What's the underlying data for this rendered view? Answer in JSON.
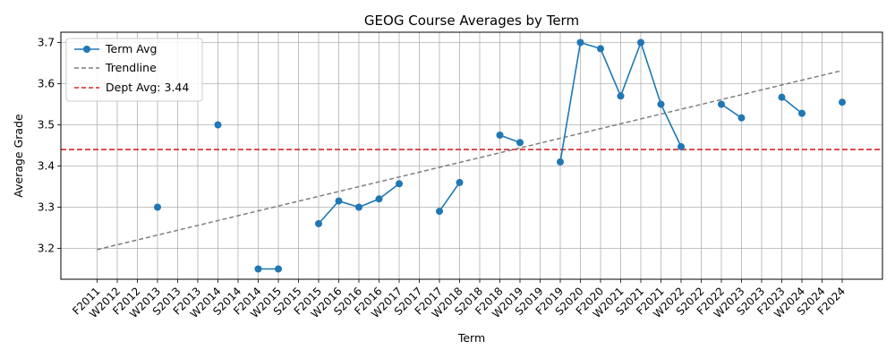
{
  "chart_data": {
    "type": "line",
    "title": "GEOG Course Averages by Term",
    "xlabel": "Term",
    "ylabel": "Average Grade",
    "ylim": [
      3.125,
      3.725
    ],
    "yticks": [
      3.2,
      3.3,
      3.4,
      3.5,
      3.6,
      3.7
    ],
    "grid": true,
    "legend_position": "top-left",
    "categories": [
      "F2011",
      "W2012",
      "F2012",
      "W2013",
      "S2013",
      "F2013",
      "W2014",
      "S2014",
      "F2014",
      "W2015",
      "S2015",
      "F2015",
      "W2016",
      "S2016",
      "F2016",
      "W2017",
      "S2017",
      "F2017",
      "W2018",
      "S2018",
      "F2018",
      "W2019",
      "S2019",
      "F2019",
      "S2020",
      "F2020",
      "W2021",
      "S2021",
      "F2021",
      "W2022",
      "S2022",
      "F2022",
      "W2023",
      "S2023",
      "F2023",
      "W2024",
      "S2024",
      "F2024"
    ],
    "series": [
      {
        "name": "Term Avg",
        "kind": "line-markers",
        "color": "#1f77b4",
        "values": [
          null,
          null,
          null,
          3.3,
          null,
          null,
          3.5,
          null,
          3.15,
          3.15,
          null,
          3.26,
          3.315,
          3.3,
          3.32,
          3.357,
          null,
          3.29,
          3.36,
          null,
          3.475,
          3.457,
          null,
          3.41,
          3.7,
          3.685,
          3.57,
          3.7,
          3.55,
          3.447,
          null,
          3.55,
          3.517,
          null,
          3.567,
          3.528,
          null,
          3.555
        ]
      },
      {
        "name": "Trendline",
        "kind": "dashed-line",
        "color": "#7f7f7f",
        "start": 3.197,
        "end": 3.632
      },
      {
        "name": "Dept Avg: 3.44",
        "kind": "horizontal-line",
        "color": "#d62728",
        "value": 3.44
      }
    ]
  }
}
